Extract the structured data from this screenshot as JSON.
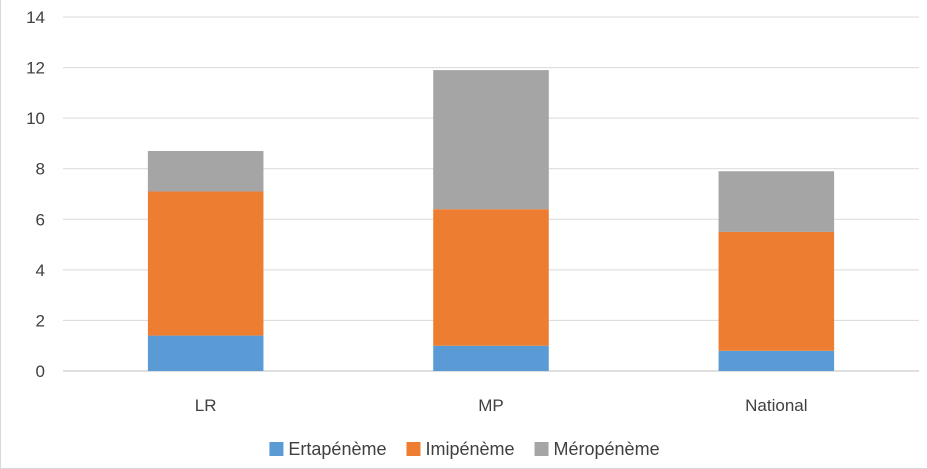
{
  "chart_data": {
    "type": "bar",
    "stacked": true,
    "categories": [
      "LR",
      "MP",
      "National"
    ],
    "series": [
      {
        "name": "Ertapénème",
        "color": "#5b9bd5",
        "values": [
          1.4,
          1.0,
          0.8
        ]
      },
      {
        "name": "Imipénème",
        "color": "#ed7d31",
        "values": [
          5.7,
          5.4,
          4.7
        ]
      },
      {
        "name": "Méropénème",
        "color": "#a5a5a5",
        "values": [
          1.6,
          5.5,
          2.4
        ]
      }
    ],
    "title": "",
    "xlabel": "",
    "ylabel": "",
    "ylim": [
      0,
      14
    ],
    "yticks": [
      0,
      2,
      4,
      6,
      8,
      10,
      12,
      14
    ],
    "grid": true,
    "legend_position": "bottom"
  },
  "colors": {
    "grid": "#d9d9d9",
    "axis": "#bfbfbf",
    "text": "#404040"
  }
}
